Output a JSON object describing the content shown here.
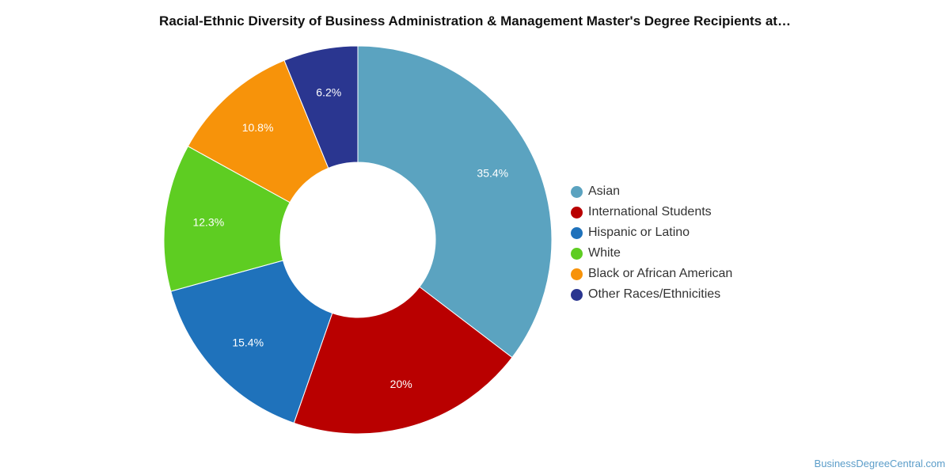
{
  "chart_data": {
    "type": "pie",
    "title": "Racial-Ethnic Diversity of Business Administration & Management Master's Degree Recipients at…",
    "categories": [
      "Asian",
      "International Students",
      "Hispanic or Latino",
      "White",
      "Black or African American",
      "Other Races/Ethnicities"
    ],
    "values": [
      35.4,
      20,
      15.4,
      12.3,
      10.8,
      6.2
    ],
    "value_labels": [
      "35.4%",
      "20%",
      "15.4%",
      "12.3%",
      "10.8%",
      "6.2%"
    ],
    "colors": [
      "#5ba3c0",
      "#b90000",
      "#1f72bb",
      "#5ecd22",
      "#f7930a",
      "#2a3690"
    ],
    "donut": true,
    "legend_position": "right"
  },
  "credit": "BusinessDegreeCentral.com"
}
